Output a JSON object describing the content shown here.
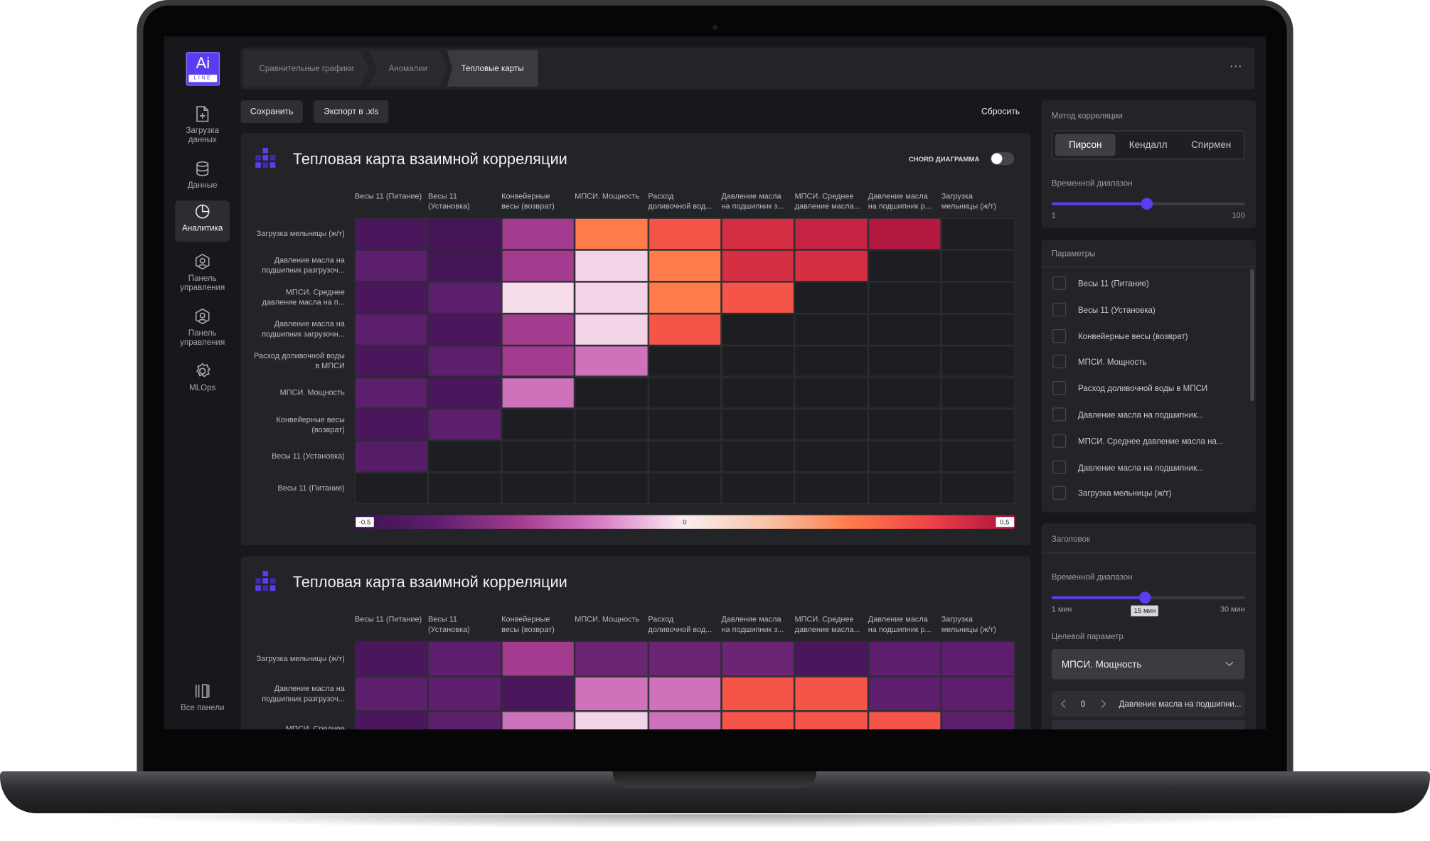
{
  "logo": {
    "mark": "Ai",
    "sub": "LINE"
  },
  "sidebar": {
    "items": [
      "Загрузка данных",
      "Данные",
      "Аналитика",
      "Панель управления",
      "Панель управления",
      "MLOps",
      "Все панели"
    ],
    "active": 2
  },
  "breadcrumbs": {
    "items": [
      "Сравнительные графики",
      "Аномалии",
      "Тепловые карты"
    ],
    "active": 2
  },
  "actions": {
    "save": "Сохранить",
    "export": "Экспорт в .xls",
    "reset": "Сбросить"
  },
  "chart_data": [
    {
      "type": "heatmap",
      "title": "Тепловая карта взаимной корреляции",
      "toggle": "CHORD ДИАГРАММА",
      "x": [
        "Весы 11 (Питание)",
        "Весы 11 (Установка)",
        "Конвейерные весы (возврат)",
        "МПСИ. Мощность",
        "Расход доливочной вод...",
        "Давление масла на подшипник з...",
        "МПСИ. Среднее давление масла...",
        "Давление масла на подшипник р...",
        "Загрузка мельницы (ж/т)"
      ],
      "y": [
        "Загрузка мельницы (ж/т)",
        "Давление масла на подшипник разгрузоч...",
        "МПСИ. Среднее давление масла на п...",
        "Давление масла на подшипник загрузочн...",
        "Расход доливочной воды в МПСИ",
        "МПСИ. Мощность",
        "Конвейерные весы (возврат)",
        "Весы 11 (Установка)",
        "Весы 11 (Питание)"
      ],
      "values": [
        [
          -0.45,
          -0.47,
          -0.25,
          0.25,
          0.33,
          0.42,
          0.45,
          0.48,
          null
        ],
        [
          -0.38,
          -0.47,
          -0.25,
          -0.03,
          0.25,
          0.42,
          0.42,
          null,
          null
        ],
        [
          -0.45,
          -0.38,
          -0.02,
          -0.03,
          0.25,
          0.33,
          null,
          null,
          null
        ],
        [
          -0.38,
          -0.45,
          -0.25,
          -0.03,
          0.33,
          null,
          null,
          null,
          null
        ],
        [
          -0.45,
          -0.38,
          -0.25,
          -0.15,
          null,
          null,
          null,
          null,
          null
        ],
        [
          -0.38,
          -0.45,
          -0.15,
          null,
          null,
          null,
          null,
          null,
          null
        ],
        [
          -0.45,
          -0.38,
          null,
          null,
          null,
          null,
          null,
          null,
          null
        ],
        [
          -0.4,
          null,
          null,
          null,
          null,
          null,
          null,
          null,
          null
        ],
        [
          null,
          null,
          null,
          null,
          null,
          null,
          null,
          null,
          null
        ]
      ],
      "clim": [
        -0.5,
        0.5
      ],
      "cticks": [
        {
          "value": -0.5,
          "label": "-0,5"
        },
        0,
        {
          "value": 0.5,
          "label": "0,5"
        }
      ],
      "colors": [
        "#3d1150",
        "#5e1f6e",
        "#a33c8e",
        "#da7fc8",
        "#fbeef0",
        "#f8c3a8",
        "#ff7b4a",
        "#ef3f48",
        "#a8123e"
      ]
    },
    {
      "type": "heatmap",
      "title": "Тепловая карта взаимной корреляции",
      "x": [
        "Весы 11 (Питание)",
        "Весы 11 (Установка)",
        "Конвейерные весы (возврат)",
        "МПСИ. Мощность",
        "Расход доливочной вод...",
        "Давление масла на подшипник з...",
        "МПСИ. Среднее давление масла...",
        "Давление масла на подшипник р...",
        "Загрузка мельницы (ж/т)"
      ],
      "y": [
        "Загрузка мельницы (ж/т)",
        "Давление масла на подшипник разгрузоч...",
        "МПСИ. Среднее"
      ],
      "values": [
        [
          -0.45,
          -0.38,
          -0.25,
          -0.35,
          -0.35,
          -0.35,
          -0.45,
          -0.38,
          -0.38
        ],
        [
          -0.38,
          -0.38,
          -0.45,
          -0.15,
          -0.15,
          0.33,
          0.33,
          -0.38,
          -0.38
        ],
        [
          -0.45,
          -0.38,
          -0.15,
          -0.03,
          -0.15,
          0.33,
          0.33,
          0.33,
          -0.38
        ]
      ],
      "clim": [
        -0.5,
        0.5
      ],
      "colors": [
        "#3d1150",
        "#5e1f6e",
        "#a33c8e",
        "#da7fc8",
        "#fbeef0",
        "#f8c3a8",
        "#ff7b4a",
        "#ef3f48",
        "#a8123e"
      ]
    }
  ],
  "correlation": {
    "title": "Метод корреляции",
    "methods": [
      "Пирсон",
      "Кендалл",
      "Спирмен"
    ],
    "active": 0,
    "range": {
      "label": "Временной диапазон",
      "min": 1,
      "max": 100,
      "value": 50
    }
  },
  "parameters": {
    "title": "Параметры",
    "items": [
      "Весы 11 (Питание)",
      "Весы 11 (Установка)",
      "Конвейерные весы (возврат)",
      "МПСИ. Мощность",
      "Расход доливочной воды в МПСИ",
      "Давление масла на подшипник...",
      "МПСИ. Среднее давление масла на...",
      "Давление масла на подшипник...",
      "Загрузка мельницы (ж/т)"
    ]
  },
  "header_panel": {
    "title": "Заголовок",
    "range": {
      "label": "Временной диапазон",
      "min": {
        "value": 1,
        "label": "1 мин"
      },
      "max": {
        "value": 30,
        "label": "30 мин"
      },
      "value": {
        "value": 15,
        "label": "15 мин"
      }
    },
    "target_label": "Целевой параметр",
    "target": "МПСИ. Мощность",
    "stepper": {
      "value": 0,
      "name": "Давление масла на подшипни..."
    }
  }
}
